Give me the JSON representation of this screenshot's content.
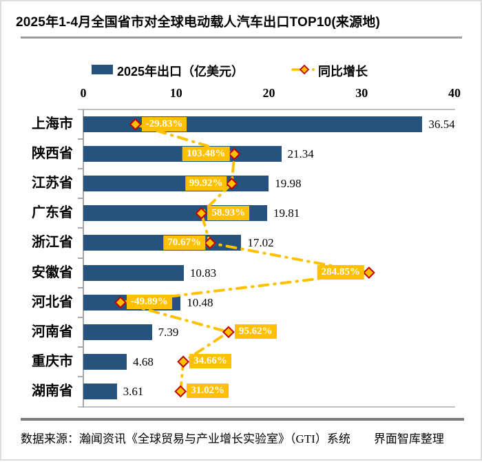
{
  "title": "2025年1-4月全国省市对全球电动载人汽车出口TOP10(来源地)",
  "legend": {
    "bar_label": "2025年出口（亿美元）",
    "growth_label": "同比增长"
  },
  "footer": "数据来源：瀚闻资讯《全球贸易与产业增长实验室》（GTI）系统　　界面智库整理",
  "colors": {
    "bar": "#26537E",
    "gold": "#FFC000",
    "diamond_border": "#C00000",
    "label_text": "#FFFFFF",
    "axis_line": "#BFBFBF",
    "divider_top": "#9C9C9C",
    "divider_bottom": "#7A7A7A"
  },
  "chart_data": {
    "type": "bar",
    "orientation": "horizontal",
    "title": "2025年1-4月全国省市对全球电动载人汽车出口TOP10(来源地)",
    "categories": [
      "上海市",
      "陕西省",
      "江苏省",
      "广东省",
      "浙江省",
      "安徽省",
      "河北省",
      "河南省",
      "重庆市",
      "湖南省"
    ],
    "series": [
      {
        "name": "2025年出口（亿美元）",
        "type": "bar",
        "values": [
          36.54,
          21.34,
          19.98,
          19.81,
          17.02,
          10.83,
          10.48,
          7.39,
          4.68,
          3.61
        ]
      },
      {
        "name": "同比增长",
        "type": "line-markers",
        "unit": "%",
        "values_pct": [
          -29.83,
          103.48,
          99.92,
          58.93,
          70.67,
          284.85,
          -49.89,
          95.62,
          34.66,
          31.02
        ]
      }
    ],
    "x_ticks": [
      0,
      10,
      20,
      30,
      40
    ],
    "xlim": [
      0,
      40
    ],
    "growth_axis_range_pct": [
      -100,
      400
    ],
    "label_sides": [
      "right",
      "left",
      "left",
      "right",
      "left",
      "left",
      "right",
      "right",
      "right",
      "right"
    ],
    "grid": false,
    "legend_position": "top"
  }
}
